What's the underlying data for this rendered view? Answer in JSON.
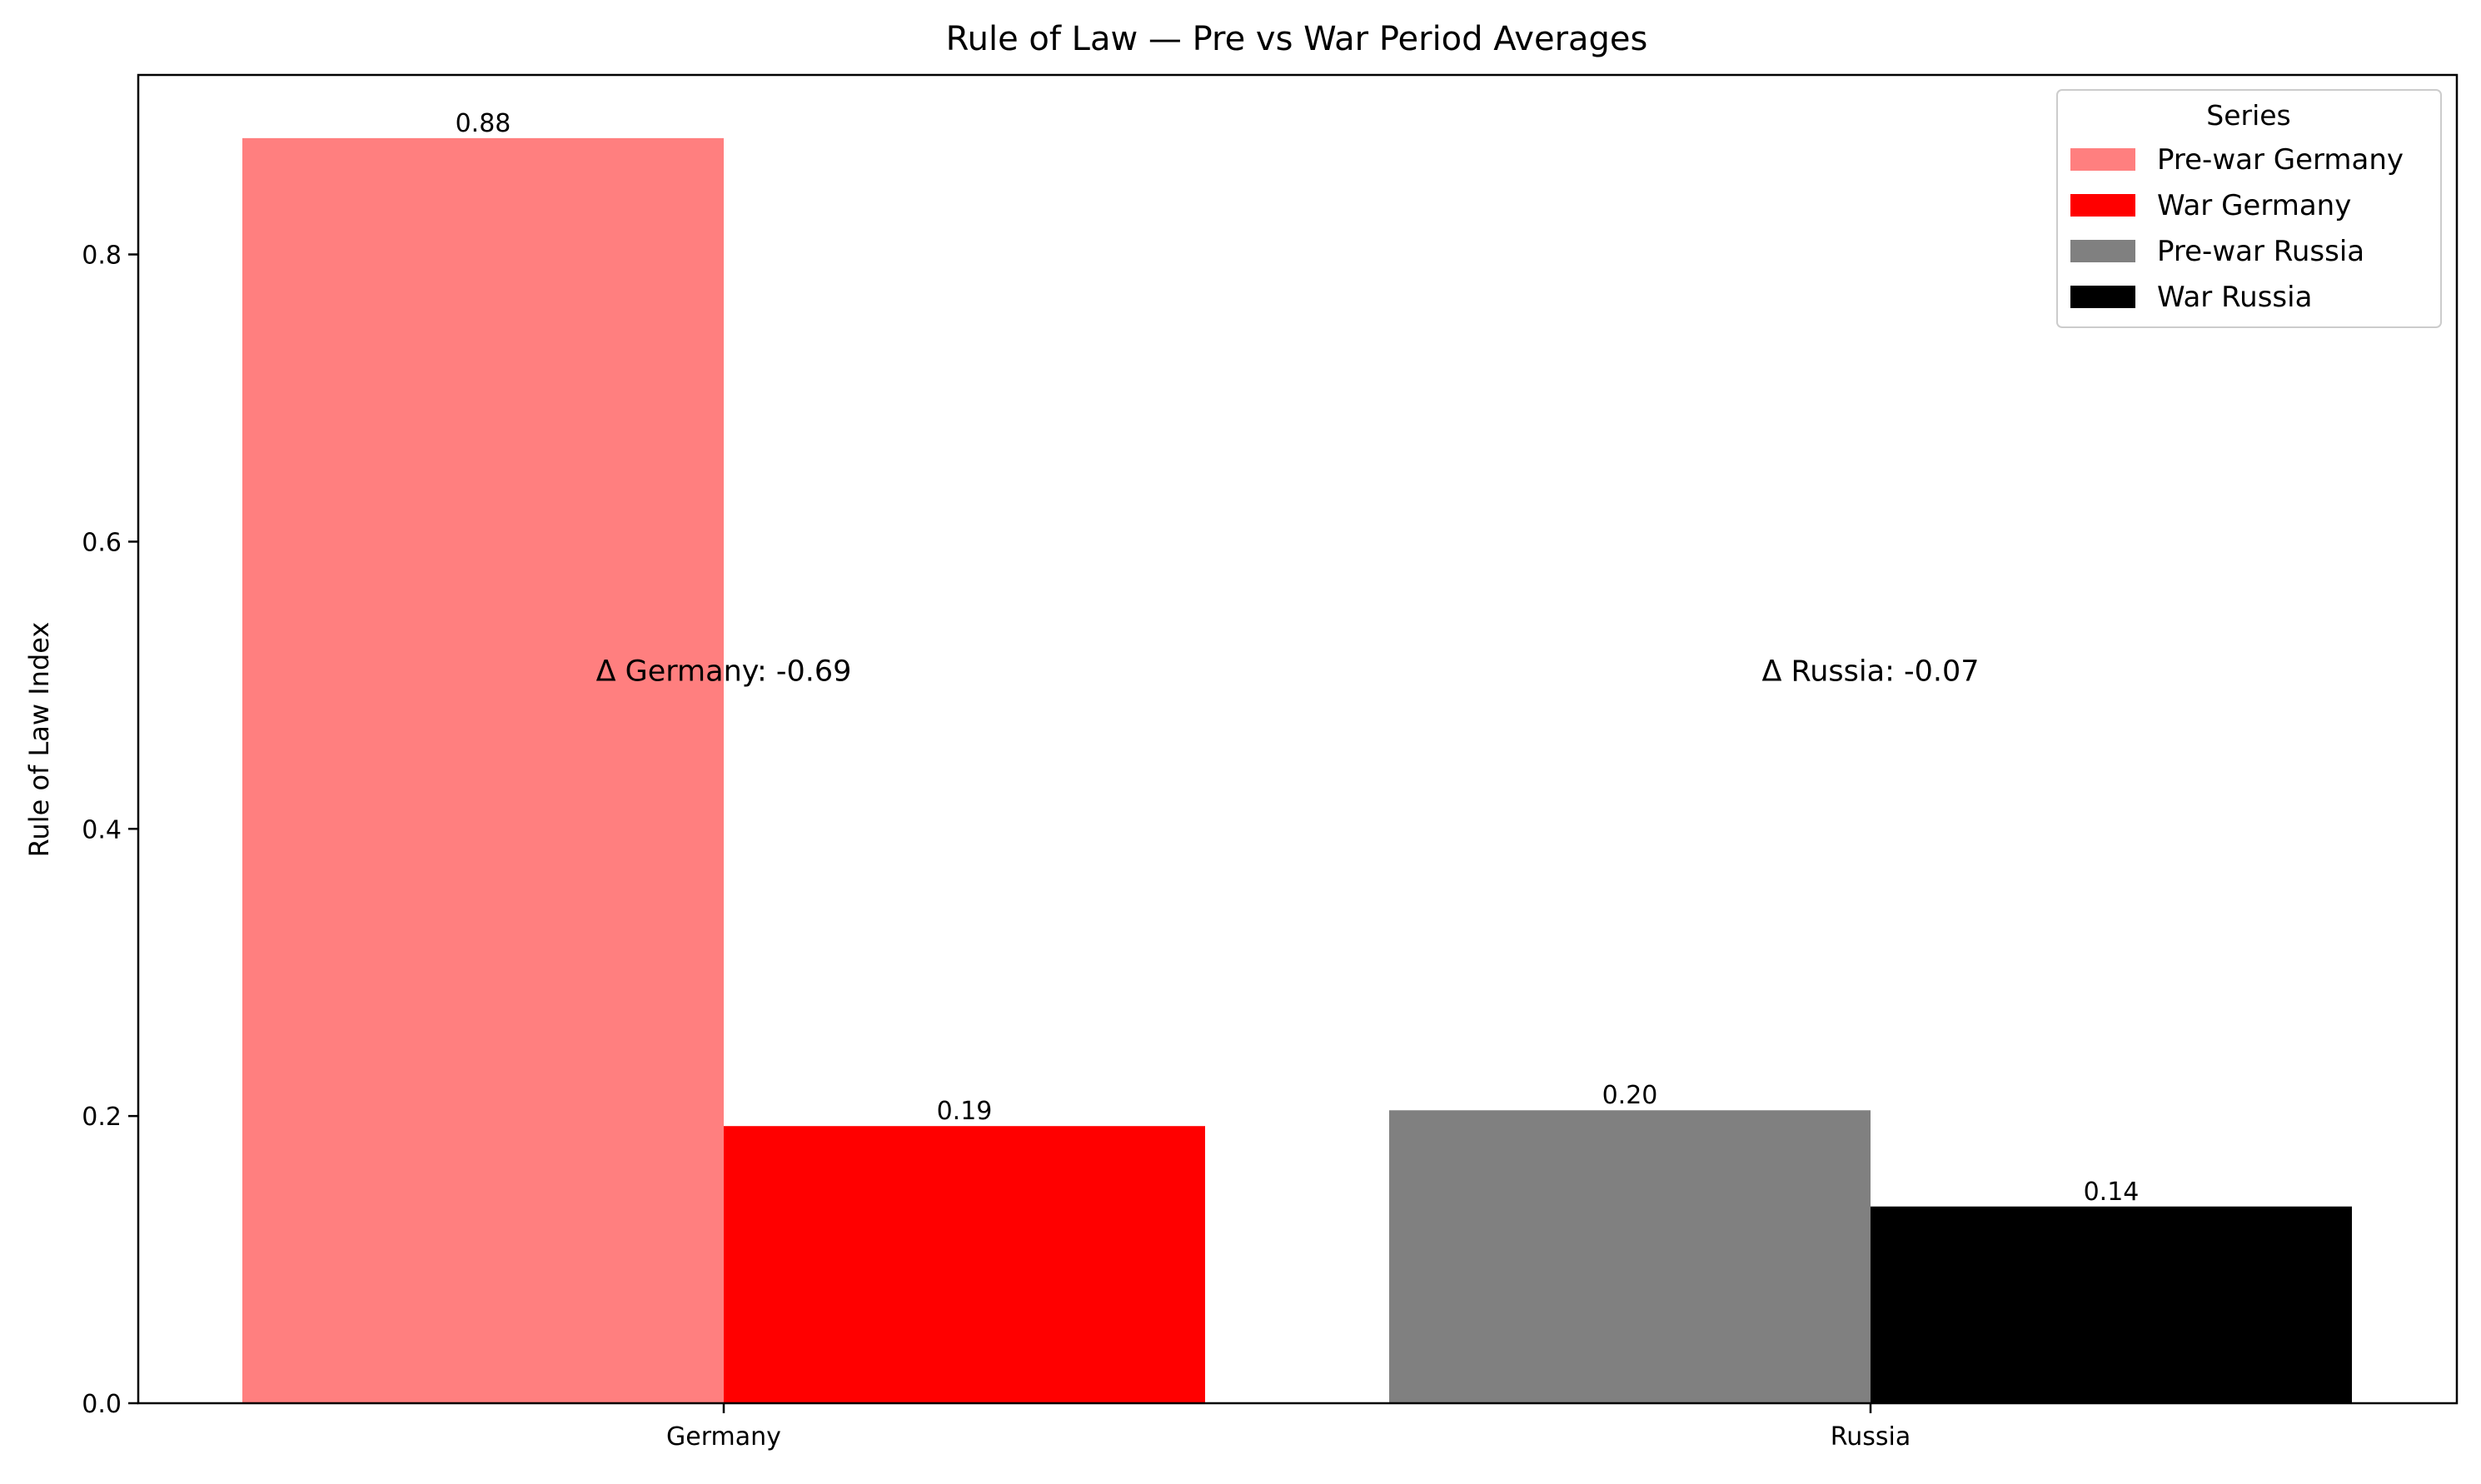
{
  "chart_data": {
    "type": "bar",
    "title": "Rule of Law — Pre vs War Period Averages",
    "xlabel": "",
    "ylabel": "Rule of Law Index",
    "categories": [
      "Germany",
      "Russia"
    ],
    "ylim": [
      0,
      0.925
    ],
    "yticks": [
      0.0,
      0.2,
      0.4,
      0.6,
      0.8
    ],
    "ytick_labels": [
      "0.0",
      "0.2",
      "0.4",
      "0.6",
      "0.8"
    ],
    "grid": false,
    "legend": {
      "title": "Series",
      "position": "upper right"
    },
    "series": [
      {
        "name": "Pre-war Germany",
        "category": "Germany",
        "value": 0.881,
        "label": "0.88",
        "color": "#ff7f7f"
      },
      {
        "name": "War Germany",
        "category": "Germany",
        "value": 0.193,
        "label": "0.19",
        "color": "#ff0000"
      },
      {
        "name": "Pre-war Russia",
        "category": "Russia",
        "value": 0.204,
        "label": "0.20",
        "color": "#808080"
      },
      {
        "name": "War Russia",
        "category": "Russia",
        "value": 0.137,
        "label": "0.14",
        "color": "#000000"
      }
    ],
    "annotations": [
      {
        "text": "Δ Germany: -0.69",
        "category": "Germany",
        "y": 0.51
      },
      {
        "text": "Δ Russia: -0.07",
        "category": "Russia",
        "y": 0.51
      }
    ]
  }
}
